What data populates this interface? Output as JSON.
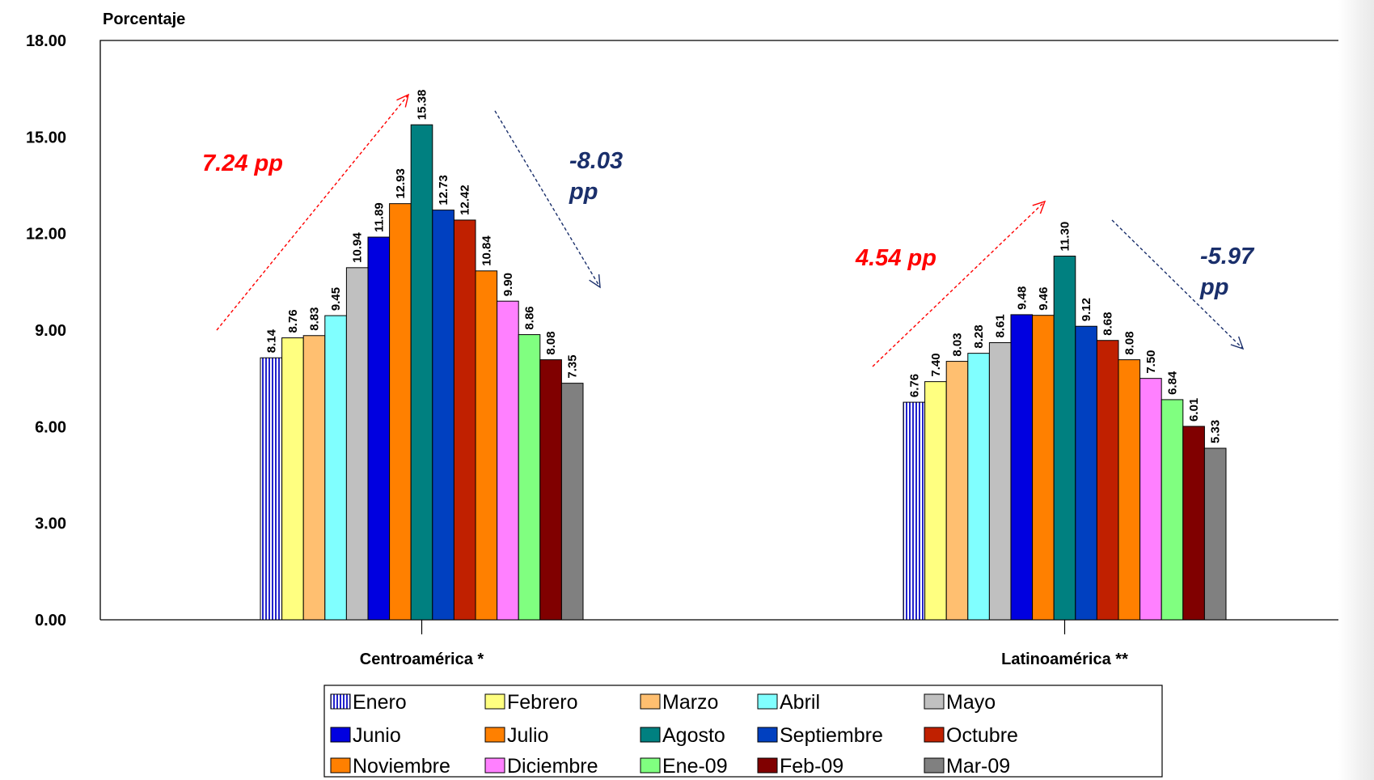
{
  "chart_data": {
    "type": "bar",
    "ylabel": "Porcentaje",
    "ylim": [
      0,
      18
    ],
    "yticks": [
      "0.00",
      "3.00",
      "6.00",
      "9.00",
      "12.00",
      "15.00",
      "18.00"
    ],
    "categories": [
      "Centroamérica *",
      "Latinoamérica **"
    ],
    "series": [
      {
        "name": "Enero",
        "values": [
          8.14,
          6.76
        ],
        "color": "#2222cc",
        "pattern": "vstripes"
      },
      {
        "name": "Febrero",
        "values": [
          8.76,
          7.4
        ],
        "color": "#ffff80"
      },
      {
        "name": "Marzo",
        "values": [
          8.83,
          8.03
        ],
        "color": "#ffbf70"
      },
      {
        "name": "Abril",
        "values": [
          9.45,
          8.28
        ],
        "color": "#80ffff"
      },
      {
        "name": "Mayo",
        "values": [
          10.94,
          8.61
        ],
        "color": "#c0c0c0"
      },
      {
        "name": "Junio",
        "values": [
          11.89,
          9.48
        ],
        "color": "#0000e0"
      },
      {
        "name": "Julio",
        "values": [
          12.93,
          9.46
        ],
        "color": "#ff8000"
      },
      {
        "name": "Agosto",
        "values": [
          15.38,
          11.3
        ],
        "color": "#008080"
      },
      {
        "name": "Septiembre",
        "values": [
          12.73,
          9.12
        ],
        "color": "#0040c0"
      },
      {
        "name": "Octubre",
        "values": [
          12.42,
          8.68
        ],
        "color": "#c02000"
      },
      {
        "name": "Noviembre",
        "values": [
          10.84,
          8.08
        ],
        "color": "#ff8000"
      },
      {
        "name": "Diciembre",
        "values": [
          9.9,
          7.5
        ],
        "color": "#ff80ff"
      },
      {
        "name": "Ene-09",
        "values": [
          8.86,
          6.84
        ],
        "color": "#80ff80"
      },
      {
        "name": "Feb-09",
        "values": [
          8.08,
          6.01
        ],
        "color": "#800000"
      },
      {
        "name": "Mar-09",
        "values": [
          7.35,
          5.33
        ],
        "color": "#808080"
      }
    ],
    "annotations": [
      {
        "text": "7.24 pp",
        "color": "#ff0000"
      },
      {
        "text": "-8.03 pp",
        "color": "#1a2f6b"
      },
      {
        "text": "4.54 pp",
        "color": "#ff0000"
      },
      {
        "text": "-5.97 pp",
        "color": "#1a2f6b"
      }
    ],
    "legend_position": "bottom",
    "grid": false
  }
}
